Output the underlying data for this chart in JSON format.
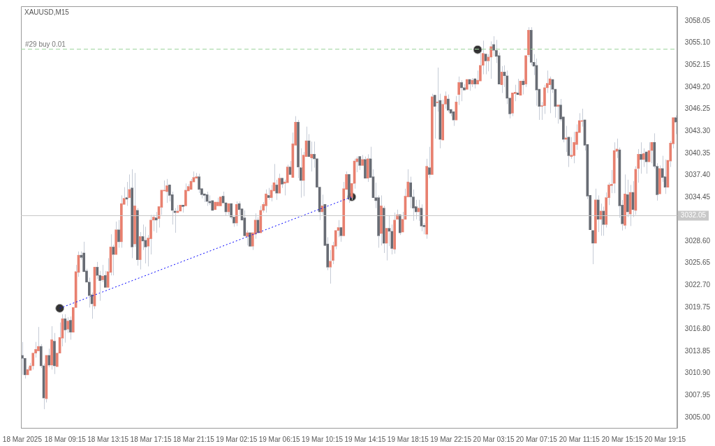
{
  "chart_data": {
    "type": "candlestick",
    "title": "XAUUSD,M15",
    "categories": [
      "18 Mar 2025",
      null,
      null,
      null,
      null,
      null,
      null,
      null,
      null,
      null,
      null,
      null,
      null,
      null,
      null,
      null,
      "18 Mar 09:15",
      null,
      null,
      null,
      null,
      null,
      null,
      null,
      null,
      null,
      null,
      null,
      null,
      null,
      null,
      null,
      "18 Mar 13:15",
      null,
      null,
      null,
      null,
      null,
      null,
      null,
      null,
      null,
      null,
      null,
      null,
      null,
      null,
      null,
      "18 Mar 17:15",
      null,
      null,
      null,
      null,
      null,
      null,
      null,
      null,
      null,
      null,
      null,
      null,
      null,
      null,
      null,
      "18 Mar 21:15",
      null,
      null,
      null,
      null,
      null,
      null,
      null,
      null,
      null,
      null,
      null,
      null,
      null,
      null,
      null,
      "19 Mar 02:15",
      null,
      null,
      null,
      null,
      null,
      null,
      null,
      null,
      null,
      null,
      null,
      null,
      null,
      null,
      null,
      "19 Mar 06:15",
      null,
      null,
      null,
      null,
      null,
      null,
      null,
      null,
      null,
      null,
      null,
      null,
      null,
      null,
      null,
      "19 Mar 10:15",
      null,
      null,
      null,
      null,
      null,
      null,
      null,
      null,
      null,
      null,
      null,
      null,
      null,
      null,
      null,
      "19 Mar 14:15",
      null,
      null,
      null,
      null,
      null,
      null,
      null,
      null,
      null,
      null,
      null,
      null,
      null,
      null,
      null,
      "19 Mar 18:15",
      null,
      null,
      null,
      null,
      null,
      null,
      null,
      null,
      null,
      null,
      null,
      null,
      null,
      null,
      null,
      "19 Mar 22:15",
      null,
      null,
      null,
      null,
      null,
      null,
      null,
      null,
      null,
      null,
      null,
      null,
      null,
      null,
      null,
      "20 Mar 03:15",
      null,
      null,
      null,
      null,
      null,
      null,
      null,
      null,
      null,
      null,
      null,
      null,
      null,
      null,
      null,
      "20 Mar 07:15",
      null,
      null,
      null,
      null,
      null,
      null,
      null,
      null,
      null,
      null,
      null,
      null,
      null,
      null,
      null,
      "20 Mar 11:15",
      null,
      null,
      null,
      null,
      null,
      null,
      null,
      null,
      null,
      null,
      null,
      null,
      null,
      null,
      null,
      "20 Mar 15:15",
      null,
      null,
      null,
      null,
      null,
      null,
      null,
      null,
      null,
      null,
      null,
      null,
      null,
      null,
      null,
      "20 Mar 19:15",
      null,
      null,
      null,
      null
    ],
    "ohlc": [
      [
        3013.3,
        3015.1,
        3010.7,
        3012.9
      ],
      [
        3012.9,
        3013.0,
        3010.2,
        3010.7
      ],
      [
        3010.7,
        3011.7,
        3010.5,
        3011.4
      ],
      [
        3011.3,
        3012.3,
        3011.2,
        3011.9
      ],
      [
        3011.9,
        3013.8,
        3011.4,
        3013.6
      ],
      [
        3013.6,
        3015.1,
        3013.0,
        3014.1
      ],
      [
        3013.9,
        3017.1,
        3013.8,
        3014.5
      ],
      [
        3014.5,
        3014.8,
        3011.6,
        3011.9
      ],
      [
        3011.9,
        3012.2,
        3006.1,
        3007.6
      ],
      [
        3007.5,
        3013.5,
        3007.0,
        3013.3
      ],
      [
        3013.3,
        3014.2,
        3011.7,
        3012.0
      ],
      [
        3012.0,
        3017.2,
        3011.4,
        3015.4
      ],
      [
        3015.2,
        3016.3,
        3010.8,
        3011.9
      ],
      [
        3011.8,
        3013.8,
        3011.7,
        3013.6
      ],
      [
        3013.6,
        3017.7,
        3013.5,
        3015.7
      ],
      [
        3015.6,
        3018.8,
        3014.5,
        3018.2
      ],
      [
        3018.2,
        3018.8,
        3015.0,
        3016.7
      ],
      [
        3016.8,
        3018.4,
        3016.3,
        3017.9
      ],
      [
        3018.0,
        3018.5,
        3015.4,
        3016.4
      ],
      [
        3016.4,
        3019.8,
        3016.3,
        3019.7
      ],
      [
        3019.7,
        3025.4,
        3019.6,
        3024.5
      ],
      [
        3024.4,
        3027.2,
        3023.8,
        3026.7
      ],
      [
        3026.7,
        3027.2,
        3026.1,
        3026.4
      ],
      [
        3027.0,
        3028.5,
        3024.4,
        3024.5
      ],
      [
        3024.6,
        3024.9,
        3022.9,
        3023.1
      ],
      [
        3023.1,
        3023.7,
        3019.7,
        3021.3
      ],
      [
        3021.4,
        3021.7,
        3018.2,
        3020.2
      ],
      [
        3019.9,
        3025.2,
        3019.5,
        3025.1
      ],
      [
        3025.1,
        3025.8,
        3023.5,
        3024.0
      ],
      [
        3024.0,
        3024.6,
        3020.6,
        3023.3
      ],
      [
        3023.4,
        3025.4,
        3023.1,
        3023.9
      ],
      [
        3024.0,
        3024.6,
        3022.3,
        3022.4
      ],
      [
        3022.4,
        3026.3,
        3022.3,
        3024.5
      ],
      [
        3024.4,
        3029.5,
        3024.0,
        3027.8
      ],
      [
        3027.8,
        3028.1,
        3024.0,
        3026.8
      ],
      [
        3026.8,
        3031.2,
        3026.7,
        3030.1
      ],
      [
        3030.1,
        3031.4,
        3027.7,
        3028.5
      ],
      [
        3028.5,
        3034.7,
        3027.7,
        3033.6
      ],
      [
        3033.5,
        3035.8,
        3033.4,
        3034.3
      ],
      [
        3034.4,
        3036.5,
        3033.3,
        3034.2
      ],
      [
        3034.4,
        3037.5,
        3034.2,
        3035.5
      ],
      [
        3035.7,
        3038.2,
        3026.3,
        3027.8
      ],
      [
        3028.2,
        3037.7,
        3027.8,
        3033.3
      ],
      [
        3032.7,
        3033.0,
        3025.3,
        3026.1
      ],
      [
        3026.1,
        3029.8,
        3024.8,
        3029.2
      ],
      [
        3029.2,
        3030.8,
        3027.4,
        3028.6
      ],
      [
        3028.7,
        3030.5,
        3025.6,
        3027.8
      ],
      [
        3027.9,
        3029.4,
        3025.2,
        3029.0
      ],
      [
        3028.9,
        3032.1,
        3026.8,
        3031.4
      ],
      [
        3031.4,
        3032.1,
        3029.9,
        3031.8
      ],
      [
        3031.7,
        3032.5,
        3029.7,
        3031.4
      ],
      [
        3031.6,
        3033.4,
        3030.4,
        3033.2
      ],
      [
        3033.1,
        3035.5,
        3032.1,
        3035.4
      ],
      [
        3035.3,
        3036.7,
        3035.2,
        3035.4
      ],
      [
        3035.2,
        3036.9,
        3033.7,
        3036.0
      ],
      [
        3036.1,
        3036.2,
        3033.9,
        3034.7
      ],
      [
        3034.8,
        3035.2,
        3030.8,
        3032.7
      ],
      [
        3032.6,
        3033.0,
        3029.7,
        3032.4
      ],
      [
        3032.4,
        3033.4,
        3032.3,
        3032.6
      ],
      [
        3032.6,
        3033.5,
        3032.4,
        3033.4
      ],
      [
        3033.4,
        3033.5,
        3032.4,
        3033.2
      ],
      [
        3033.3,
        3036.3,
        3033.2,
        3035.4
      ],
      [
        3035.3,
        3036.2,
        3035.2,
        3035.9
      ],
      [
        3035.5,
        3036.9,
        3035.3,
        3036.6
      ],
      [
        3036.5,
        3037.9,
        3036.4,
        3037.1
      ],
      [
        3037.0,
        3037.7,
        3036.9,
        3037.2
      ],
      [
        3037.2,
        3037.6,
        3035.0,
        3035.5
      ],
      [
        3035.6,
        3035.7,
        3034.3,
        3034.8
      ],
      [
        3034.9,
        3035.1,
        3033.8,
        3034.7
      ],
      [
        3034.8,
        3035.2,
        3033.3,
        3033.9
      ],
      [
        3033.9,
        3034.7,
        3033.4,
        3033.7
      ],
      [
        3034.0,
        3034.2,
        3032.6,
        3032.7
      ],
      [
        3032.8,
        3033.9,
        3032.7,
        3033.8
      ],
      [
        3033.3,
        3034.4,
        3033.2,
        3033.8
      ],
      [
        3033.3,
        3034.7,
        3033.2,
        3034.5
      ],
      [
        3034.6,
        3035.2,
        3033.6,
        3033.7
      ],
      [
        3033.7,
        3033.9,
        3032.0,
        3032.5
      ],
      [
        3032.5,
        3033.8,
        3032.1,
        3033.6
      ],
      [
        3033.6,
        3033.8,
        3031.5,
        3031.8
      ],
      [
        3031.8,
        3031.9,
        3030.5,
        3031.0
      ],
      [
        3031.0,
        3033.9,
        3030.6,
        3033.5
      ],
      [
        3033.6,
        3033.9,
        3032.1,
        3032.8
      ],
      [
        3032.9,
        3033.1,
        3031.2,
        3031.4
      ],
      [
        3031.7,
        3032.7,
        3029.2,
        3029.3
      ],
      [
        3029.2,
        3030.0,
        3028.0,
        3029.7
      ],
      [
        3029.7,
        3029.9,
        3027.7,
        3027.9
      ],
      [
        3027.9,
        3029.8,
        3027.4,
        3029.7
      ],
      [
        3029.5,
        3032.3,
        3028.9,
        3031.4
      ],
      [
        3031.4,
        3031.8,
        3029.5,
        3029.7
      ],
      [
        3029.7,
        3033.3,
        3029.5,
        3032.7
      ],
      [
        3032.7,
        3033.8,
        3032.4,
        3033.5
      ],
      [
        3033.3,
        3035.5,
        3032.4,
        3034.9
      ],
      [
        3034.7,
        3035.7,
        3034.1,
        3034.4
      ],
      [
        3034.4,
        3036.1,
        3033.9,
        3035.4
      ],
      [
        3035.3,
        3038.9,
        3035.2,
        3036.4
      ],
      [
        3036.1,
        3036.8,
        3034.1,
        3035.0
      ],
      [
        3035.0,
        3037.6,
        3034.9,
        3037.0
      ],
      [
        3037.0,
        3037.1,
        3035.7,
        3036.2
      ],
      [
        3036.3,
        3036.8,
        3034.7,
        3036.5
      ],
      [
        3036.4,
        3038.8,
        3036.3,
        3038.5
      ],
      [
        3038.5,
        3039.3,
        3037.3,
        3037.5
      ],
      [
        3037.1,
        3043.1,
        3037.0,
        3041.6
      ],
      [
        3041.4,
        3045.3,
        3041.3,
        3044.5
      ],
      [
        3044.5,
        3044.8,
        3037.0,
        3038.5
      ],
      [
        3038.4,
        3041.0,
        3034.4,
        3036.7
      ],
      [
        3036.7,
        3040.5,
        3034.6,
        3040.1
      ],
      [
        3039.9,
        3043.9,
        3039.8,
        3042.0
      ],
      [
        3042.0,
        3042.9,
        3039.8,
        3039.9
      ],
      [
        3039.7,
        3041.9,
        3037.9,
        3040.2
      ],
      [
        3040.2,
        3041.9,
        3038.4,
        3039.6
      ],
      [
        3039.6,
        3039.7,
        3035.6,
        3035.8
      ],
      [
        3035.8,
        3035.9,
        3031.4,
        3032.5
      ],
      [
        3032.5,
        3034.8,
        3032.1,
        3033.3
      ],
      [
        3033.5,
        3033.6,
        3027.9,
        3028.0
      ],
      [
        3028.2,
        3029.1,
        3024.7,
        3025.1
      ],
      [
        3025.1,
        3027.4,
        3022.9,
        3025.9
      ],
      [
        3026.0,
        3028.5,
        3025.5,
        3028.0
      ],
      [
        3027.9,
        3030.1,
        3027.5,
        3030.0
      ],
      [
        3030.0,
        3031.4,
        3029.1,
        3030.4
      ],
      [
        3030.4,
        3030.5,
        3028.5,
        3029.3
      ],
      [
        3029.3,
        3036.5,
        3029.2,
        3035.6
      ],
      [
        3035.5,
        3037.9,
        3035.3,
        3037.5
      ],
      [
        3037.5,
        3037.7,
        3033.7,
        3034.4
      ],
      [
        3034.4,
        3036.4,
        3034.1,
        3036.3
      ],
      [
        3036.3,
        3039.6,
        3035.6,
        3039.3
      ],
      [
        3039.2,
        3039.9,
        3037.8,
        3039.6
      ],
      [
        3039.9,
        3040.0,
        3038.1,
        3038.7
      ],
      [
        3038.7,
        3040.1,
        3038.5,
        3039.5
      ],
      [
        3039.5,
        3039.9,
        3036.9,
        3037.0
      ],
      [
        3037.0,
        3040.2,
        3036.5,
        3039.6
      ],
      [
        3039.6,
        3041.2,
        3036.9,
        3037.1
      ],
      [
        3037.2,
        3038.2,
        3034.2,
        3034.4
      ],
      [
        3034.4,
        3036.4,
        3033.0,
        3034.0
      ],
      [
        3034.4,
        3034.7,
        3027.7,
        3029.3
      ],
      [
        3029.6,
        3034.7,
        3028.0,
        3033.3
      ],
      [
        3033.0,
        3033.3,
        3027.0,
        3028.3
      ],
      [
        3028.3,
        3030.4,
        3026.0,
        3030.3
      ],
      [
        3030.3,
        3032.0,
        3027.9,
        3029.9
      ],
      [
        3029.9,
        3030.8,
        3026.8,
        3027.6
      ],
      [
        3027.5,
        3032.4,
        3026.9,
        3031.4
      ],
      [
        3031.5,
        3032.8,
        3031.3,
        3032.1
      ],
      [
        3032.1,
        3032.3,
        3029.4,
        3029.7
      ],
      [
        3029.8,
        3032.5,
        3029.6,
        3031.5
      ],
      [
        3031.5,
        3035.6,
        3031.3,
        3034.6
      ],
      [
        3034.5,
        3038.2,
        3034.4,
        3036.5
      ],
      [
        3036.4,
        3037.2,
        3033.0,
        3034.5
      ],
      [
        3034.5,
        3035.5,
        3031.3,
        3033.0
      ],
      [
        3033.2,
        3034.1,
        3031.5,
        3032.5
      ],
      [
        3032.5,
        3034.1,
        3031.3,
        3033.0
      ],
      [
        3033.0,
        3033.5,
        3029.9,
        3030.6
      ],
      [
        3030.7,
        3031.0,
        3029.5,
        3030.5
      ],
      [
        3029.5,
        3039.6,
        3028.9,
        3038.6
      ],
      [
        3038.4,
        3041.2,
        3037.0,
        3037.5
      ],
      [
        3037.5,
        3048.3,
        3037.4,
        3047.9
      ],
      [
        3048.1,
        3048.3,
        3042.3,
        3046.6
      ],
      [
        3047.1,
        3051.8,
        3045.9,
        3047.2
      ],
      [
        3047.4,
        3048.3,
        3041.0,
        3042.2
      ],
      [
        3042.1,
        3047.5,
        3042.0,
        3046.9
      ],
      [
        3046.9,
        3048.6,
        3046.3,
        3048.0
      ],
      [
        3047.6,
        3048.2,
        3045.8,
        3046.1
      ],
      [
        3046.2,
        3046.3,
        3045.3,
        3045.7
      ],
      [
        3045.9,
        3046.1,
        3044.0,
        3044.8
      ],
      [
        3044.8,
        3048.0,
        3044.7,
        3047.2
      ],
      [
        3048.2,
        3050.6,
        3046.8,
        3049.8
      ],
      [
        3049.8,
        3050.1,
        3047.3,
        3049.1
      ],
      [
        3049.1,
        3049.6,
        3048.6,
        3048.8
      ],
      [
        3048.9,
        3050.4,
        3048.7,
        3050.2
      ],
      [
        3050.2,
        3050.3,
        3048.7,
        3049.6
      ],
      [
        3049.6,
        3050.4,
        3049.2,
        3050.1
      ],
      [
        3050.3,
        3050.4,
        3049.0,
        3049.6
      ],
      [
        3049.6,
        3051.4,
        3049.5,
        3050.1
      ],
      [
        3050.0,
        3053.8,
        3049.9,
        3052.1
      ],
      [
        3052.1,
        3055.4,
        3050.9,
        3053.7
      ],
      [
        3053.6,
        3053.8,
        3050.9,
        3052.7
      ],
      [
        3052.7,
        3053.6,
        3051.3,
        3053.2
      ],
      [
        3053.2,
        3055.3,
        3050.3,
        3054.6
      ],
      [
        3054.9,
        3056.0,
        3053.3,
        3054.1
      ],
      [
        3054.1,
        3055.5,
        3052.4,
        3053.3
      ],
      [
        3053.4,
        3053.8,
        3049.4,
        3049.6
      ],
      [
        3049.5,
        3052.0,
        3048.4,
        3051.2
      ],
      [
        3051.2,
        3052.1,
        3049.2,
        3050.7
      ],
      [
        3050.7,
        3051.4,
        3046.9,
        3047.7
      ],
      [
        3047.7,
        3047.8,
        3045.0,
        3045.6
      ],
      [
        3045.7,
        3048.5,
        3045.3,
        3048.4
      ],
      [
        3048.3,
        3049.5,
        3047.3,
        3048.5
      ],
      [
        3048.4,
        3050.3,
        3048.0,
        3048.2
      ],
      [
        3048.1,
        3050.2,
        3047.9,
        3050.0
      ],
      [
        3050.0,
        3050.3,
        3048.2,
        3049.5
      ],
      [
        3049.6,
        3053.6,
        3049.2,
        3053.4
      ],
      [
        3053.5,
        3057.2,
        3053.2,
        3056.8
      ],
      [
        3056.8,
        3057.2,
        3052.1,
        3052.5
      ],
      [
        3052.5,
        3053.6,
        3050.8,
        3052.0
      ],
      [
        3052.1,
        3053.0,
        3046.7,
        3048.8
      ],
      [
        3048.9,
        3049.0,
        3044.8,
        3046.6
      ],
      [
        3046.6,
        3047.2,
        3044.8,
        3046.7
      ],
      [
        3046.7,
        3049.5,
        3045.6,
        3049.1
      ],
      [
        3049.1,
        3051.4,
        3048.4,
        3049.7
      ],
      [
        3049.5,
        3050.6,
        3045.7,
        3050.3
      ],
      [
        3050.2,
        3050.4,
        3048.4,
        3048.9
      ],
      [
        3048.9,
        3049.0,
        3045.1,
        3046.6
      ],
      [
        3046.6,
        3047.0,
        3044.3,
        3046.8
      ],
      [
        3046.8,
        3047.6,
        3044.6,
        3044.9
      ],
      [
        3045.2,
        3045.3,
        3041.8,
        3042.2
      ],
      [
        3042.2,
        3044.0,
        3040.5,
        3042.4
      ],
      [
        3042.5,
        3042.6,
        3038.5,
        3040.0
      ],
      [
        3039.9,
        3042.5,
        3039.6,
        3040.1
      ],
      [
        3040.0,
        3043.2,
        3039.0,
        3041.8
      ],
      [
        3041.5,
        3044.2,
        3040.8,
        3043.2
      ],
      [
        3043.1,
        3045.7,
        3043.0,
        3044.7
      ],
      [
        3044.6,
        3046.3,
        3043.9,
        3044.7
      ],
      [
        3044.8,
        3044.9,
        3040.7,
        3041.4
      ],
      [
        3041.5,
        3041.6,
        3034.2,
        3034.6
      ],
      [
        3034.7,
        3034.8,
        3030.0,
        3030.1
      ],
      [
        3030.0,
        3030.1,
        3025.5,
        3028.3
      ],
      [
        3028.3,
        3035.6,
        3028.2,
        3034.1
      ],
      [
        3034.1,
        3034.7,
        3029.8,
        3031.5
      ],
      [
        3031.5,
        3033.6,
        3029.3,
        3032.6
      ],
      [
        3032.6,
        3033.2,
        3029.3,
        3030.8
      ],
      [
        3030.8,
        3035.1,
        3030.4,
        3034.4
      ],
      [
        3034.4,
        3036.4,
        3033.4,
        3036.1
      ],
      [
        3036.0,
        3038.1,
        3035.0,
        3036.2
      ],
      [
        3036.3,
        3041.8,
        3035.0,
        3040.7
      ],
      [
        3040.6,
        3042.3,
        3039.7,
        3040.9
      ],
      [
        3040.8,
        3041.1,
        3031.7,
        3033.3
      ],
      [
        3033.4,
        3034.1,
        3030.0,
        3030.9
      ],
      [
        3030.7,
        3037.5,
        3030.2,
        3034.9
      ],
      [
        3034.8,
        3036.8,
        3031.8,
        3032.5
      ],
      [
        3032.2,
        3036.1,
        3030.6,
        3035.1
      ],
      [
        3035.1,
        3036.6,
        3031.8,
        3032.8
      ],
      [
        3032.7,
        3038.6,
        3032.1,
        3038.2
      ],
      [
        3038.3,
        3040.9,
        3036.4,
        3040.2
      ],
      [
        3040.2,
        3041.8,
        3037.6,
        3039.5
      ],
      [
        3039.5,
        3041.0,
        3038.5,
        3040.3
      ],
      [
        3040.5,
        3040.6,
        3037.6,
        3039.2
      ],
      [
        3039.2,
        3041.8,
        3039.1,
        3040.7
      ],
      [
        3040.7,
        3042.0,
        3039.0,
        3041.8
      ],
      [
        3041.8,
        3043.0,
        3038.3,
        3038.6
      ],
      [
        3038.6,
        3039.0,
        3034.0,
        3034.8
      ],
      [
        3034.9,
        3038.7,
        3034.8,
        3038.3
      ],
      [
        3038.3,
        3040.0,
        3036.5,
        3037.1
      ],
      [
        3037.2,
        3039.5,
        3034.9,
        3035.8
      ],
      [
        3035.8,
        3039.6,
        3035.7,
        3039.4
      ],
      [
        3039.3,
        3042.0,
        3038.5,
        3041.7
      ],
      [
        3041.6,
        3045.3,
        3041.0,
        3045.1
      ],
      [
        3045.1,
        3045.4,
        3042.9,
        3044.5
      ]
    ],
    "colors": [
      "#686c74",
      "#686c74",
      "#e8806f",
      "#e8806f",
      "#e8806f",
      "#e8806f",
      "#e8806f",
      "#686c74",
      "#686c74",
      "#e8806f",
      "#686c74",
      "#e8806f",
      "#686c74",
      "#e8806f",
      "#e8806f",
      "#e8806f",
      "#686c74",
      "#e8806f",
      "#686c74",
      "#e8806f",
      "#e8806f",
      "#e8806f",
      "#686c74",
      "#686c74",
      "#686c74",
      "#686c74",
      "#686c74",
      "#e8806f",
      "#686c74",
      "#686c74",
      "#e8806f",
      "#686c74",
      "#e8806f",
      "#e8806f",
      "#686c74",
      "#e8806f",
      "#686c74",
      "#e8806f",
      "#e8806f",
      "#686c74",
      "#e8806f",
      "#686c74",
      "#e8806f",
      "#686c74",
      "#e8806f",
      "#686c74",
      "#686c74",
      "#e8806f",
      "#e8806f",
      "#e8806f",
      "#686c74",
      "#e8806f",
      "#e8806f",
      "#e8806f",
      "#e8806f",
      "#686c74",
      "#686c74",
      "#686c74",
      "#e8806f",
      "#e8806f",
      "#686c74",
      "#e8806f",
      "#e8806f",
      "#e8806f",
      "#e8806f",
      "#e8806f",
      "#686c74",
      "#686c74",
      "#686c74",
      "#686c74",
      "#686c74",
      "#686c74",
      "#e8806f",
      "#e8806f",
      "#e8806f",
      "#686c74",
      "#686c74",
      "#e8806f",
      "#686c74",
      "#686c74",
      "#e8806f",
      "#686c74",
      "#686c74",
      "#686c74",
      "#e8806f",
      "#686c74",
      "#e8806f",
      "#e8806f",
      "#686c74",
      "#e8806f",
      "#e8806f",
      "#e8806f",
      "#686c74",
      "#e8806f",
      "#e8806f",
      "#686c74",
      "#e8806f",
      "#686c74",
      "#e8806f",
      "#e8806f",
      "#686c74",
      "#e8806f",
      "#e8806f",
      "#686c74",
      "#686c74",
      "#e8806f",
      "#e8806f",
      "#686c74",
      "#e8806f",
      "#686c74",
      "#686c74",
      "#686c74",
      "#e8806f",
      "#686c74",
      "#686c74",
      "#e8806f",
      "#e8806f",
      "#e8806f",
      "#e8806f",
      "#686c74",
      "#e8806f",
      "#e8806f",
      "#686c74",
      "#e8806f",
      "#e8806f",
      "#e8806f",
      "#686c74",
      "#e8806f",
      "#686c74",
      "#e8806f",
      "#686c74",
      "#686c74",
      "#686c74",
      "#686c74",
      "#e8806f",
      "#686c74",
      "#e8806f",
      "#686c74",
      "#686c74",
      "#e8806f",
      "#e8806f",
      "#686c74",
      "#e8806f",
      "#e8806f",
      "#e8806f",
      "#686c74",
      "#686c74",
      "#686c74",
      "#e8806f",
      "#686c74",
      "#686c74",
      "#e8806f",
      "#686c74",
      "#e8806f",
      "#686c74",
      "#e8806f",
      "#686c74",
      "#e8806f",
      "#e8806f",
      "#686c74",
      "#686c74",
      "#686c74",
      "#e8806f",
      "#e8806f",
      "#686c74",
      "#686c74",
      "#e8806f",
      "#686c74",
      "#e8806f",
      "#686c74",
      "#e8806f",
      "#e8806f",
      "#e8806f",
      "#686c74",
      "#e8806f",
      "#e8806f",
      "#686c74",
      "#686c74",
      "#686c74",
      "#e8806f",
      "#686c74",
      "#686c74",
      "#686c74",
      "#e8806f",
      "#e8806f",
      "#686c74",
      "#e8806f",
      "#686c74",
      "#e8806f",
      "#e8806f",
      "#686c74",
      "#686c74",
      "#686c74",
      "#686c74",
      "#e8806f",
      "#e8806f",
      "#e8806f",
      "#e8806f",
      "#686c74",
      "#686c74",
      "#e8806f",
      "#686c74",
      "#686c74",
      "#e8806f",
      "#686c74",
      "#e8806f",
      "#e8806f",
      "#e8806f",
      "#e8806f",
      "#e8806f",
      "#686c74",
      "#686c74",
      "#686c74",
      "#686c74",
      "#e8806f",
      "#686c74",
      "#e8806f",
      "#686c74",
      "#e8806f",
      "#e8806f",
      "#e8806f",
      "#e8806f",
      "#e8806f",
      "#686c74",
      "#686c74",
      "#e8806f",
      "#686c74",
      "#e8806f",
      "#686c74",
      "#e8806f",
      "#e8806f",
      "#686c74",
      "#e8806f",
      "#686c74",
      "#e8806f",
      "#e8806f",
      "#686c74",
      "#686c74",
      "#e8806f",
      "#686c74",
      "#686c74",
      "#e8806f",
      "#e8806f",
      "#e8806f",
      "#686c74"
    ],
    "series": [
      {
        "type": "line",
        "color": "#0000ff",
        "line_style": "dotted",
        "marker": "none",
        "values": [
          null,
          null,
          null,
          null,
          null,
          null,
          null,
          null,
          null,
          null,
          null,
          null,
          null,
          null,
          3019.6,
          null,
          null,
          null,
          null,
          null,
          null,
          null,
          null,
          null,
          null,
          null,
          null,
          null,
          null,
          null,
          null,
          null,
          null,
          null,
          null,
          null,
          null,
          null,
          null,
          null,
          null,
          null,
          null,
          null,
          null,
          null,
          null,
          null,
          null,
          null,
          null,
          null,
          null,
          null,
          null,
          null,
          null,
          null,
          null,
          null,
          null,
          null,
          null,
          null,
          null,
          null,
          null,
          null,
          null,
          null,
          null,
          null,
          null,
          null,
          null,
          null,
          null,
          null,
          null,
          null,
          null,
          null,
          null,
          null,
          null,
          null,
          null,
          null,
          null,
          null,
          null,
          null,
          null,
          null,
          null,
          null,
          null,
          null,
          null,
          null,
          null,
          null,
          null,
          null,
          null,
          null,
          null,
          null,
          null,
          null,
          null,
          null,
          null,
          null,
          null,
          null,
          null,
          null,
          null,
          null,
          null,
          null,
          null,
          3034.5,
          null,
          null,
          null,
          null,
          null,
          null,
          null,
          null,
          null,
          null,
          null,
          null,
          null,
          null,
          null,
          null,
          null,
          null,
          null,
          null,
          null,
          null,
          null,
          null,
          null,
          null,
          null,
          null,
          null,
          null,
          null,
          null,
          null,
          null,
          null,
          null,
          null,
          null,
          null,
          null,
          null,
          null,
          null,
          null,
          null,
          null,
          null,
          null,
          null,
          null,
          null,
          null,
          null,
          null,
          null,
          null,
          null,
          null,
          null,
          null,
          null,
          null,
          null,
          null,
          null,
          null,
          null,
          null,
          null,
          null,
          null,
          null,
          null,
          null,
          null,
          null,
          null,
          null,
          null,
          null,
          null,
          null,
          null,
          null,
          null,
          null,
          null,
          null,
          null,
          null,
          null,
          null,
          null,
          null,
          null,
          null,
          null,
          null,
          null,
          null,
          null,
          null,
          null,
          null,
          null,
          null,
          null,
          null,
          null,
          null,
          null,
          null,
          null,
          null,
          null,
          null,
          null,
          null,
          null,
          null,
          null
        ]
      },
      {
        "type": "scatter",
        "color": "#333333",
        "marker": "circle",
        "values": [
          null,
          null,
          null,
          null,
          null,
          null,
          null,
          null,
          null,
          null,
          null,
          null,
          null,
          null,
          3019.6,
          null,
          null,
          null,
          null,
          null,
          null,
          null,
          null,
          null,
          null,
          null,
          null,
          null,
          null,
          null,
          null,
          null,
          null,
          null,
          null,
          null,
          null,
          null,
          null,
          null,
          null,
          null,
          null,
          null,
          null,
          null,
          null,
          null,
          null,
          null,
          null,
          null,
          null,
          null,
          null,
          null,
          null,
          null,
          null,
          null,
          null,
          null,
          null,
          null,
          null,
          null,
          null,
          null,
          null,
          null,
          null,
          null,
          null,
          null,
          null,
          null,
          null,
          null,
          null,
          null,
          null,
          null,
          null,
          null,
          null,
          null,
          null,
          null,
          null,
          null,
          null,
          null,
          null,
          null,
          null,
          null,
          null,
          null,
          null,
          null,
          null,
          null,
          null,
          null,
          null,
          null,
          null,
          null,
          null,
          null,
          null,
          null,
          null,
          null,
          null,
          null,
          null,
          null,
          null,
          null,
          null,
          null,
          null,
          3034.5,
          null,
          null,
          null,
          null,
          null,
          null,
          null,
          null,
          null,
          null,
          null,
          null,
          null,
          null,
          null,
          null,
          null,
          null,
          null,
          null,
          null,
          null,
          null,
          null,
          null,
          null,
          null,
          null,
          null,
          null,
          null,
          null,
          null,
          null,
          null,
          null,
          null,
          null,
          null,
          null,
          null,
          null,
          null,
          null,
          null,
          null,
          3054.2,
          null,
          null,
          null,
          null,
          null,
          null,
          null,
          null,
          null,
          null,
          null,
          null,
          null,
          null,
          null,
          null,
          null,
          null,
          null,
          null,
          null,
          null,
          null,
          null,
          null,
          null,
          null,
          null,
          null,
          null,
          null,
          null,
          null,
          null,
          null,
          null,
          null,
          null,
          null,
          null,
          null,
          null,
          null,
          null,
          null,
          null,
          null,
          null,
          null,
          null,
          null,
          null,
          null,
          null,
          null,
          null,
          null,
          null,
          null,
          null,
          null,
          null,
          null,
          null,
          null,
          null,
          null,
          null,
          null,
          null,
          null,
          null,
          null,
          null
        ]
      }
    ],
    "ylim": [
      3003.6,
      3060.0
    ],
    "yticks": [
      {
        "value": 3005.0,
        "label": "3005.00"
      },
      {
        "value": 3007.95,
        "label": "3007.95"
      },
      {
        "value": 3010.9,
        "label": "3010.90"
      },
      {
        "value": 3013.85,
        "label": "3013.85"
      },
      {
        "value": 3016.8,
        "label": "3016.80"
      },
      {
        "value": 3019.75,
        "label": "3019.75"
      },
      {
        "value": 3022.7,
        "label": "3022.70"
      },
      {
        "value": 3025.65,
        "label": "3025.65"
      },
      {
        "value": 3028.6,
        "label": "3028.60"
      },
      {
        "value": 3034.45,
        "label": "3034.45"
      },
      {
        "value": 3037.4,
        "label": "3037.40"
      },
      {
        "value": 3040.35,
        "label": "3040.35"
      },
      {
        "value": 3043.3,
        "label": "3043.30"
      },
      {
        "value": 3046.25,
        "label": "3046.25"
      },
      {
        "value": 3049.2,
        "label": "3049.20"
      },
      {
        "value": 3052.15,
        "label": "3052.15"
      },
      {
        "value": 3055.1,
        "label": "3055.10"
      },
      {
        "value": 3058.05,
        "label": "3058.05"
      }
    ],
    "ref_lines": [
      {
        "axis": "y",
        "value": 3032.05,
        "label": "3032.05",
        "color": "#c8c8c8",
        "line_style": "solid"
      },
      {
        "axis": "y",
        "value": 3054.3,
        "label": "#29 buy 0.01",
        "color": "#9ed49e",
        "line_style": "dashed"
      }
    ],
    "grid": false,
    "legend": false
  }
}
